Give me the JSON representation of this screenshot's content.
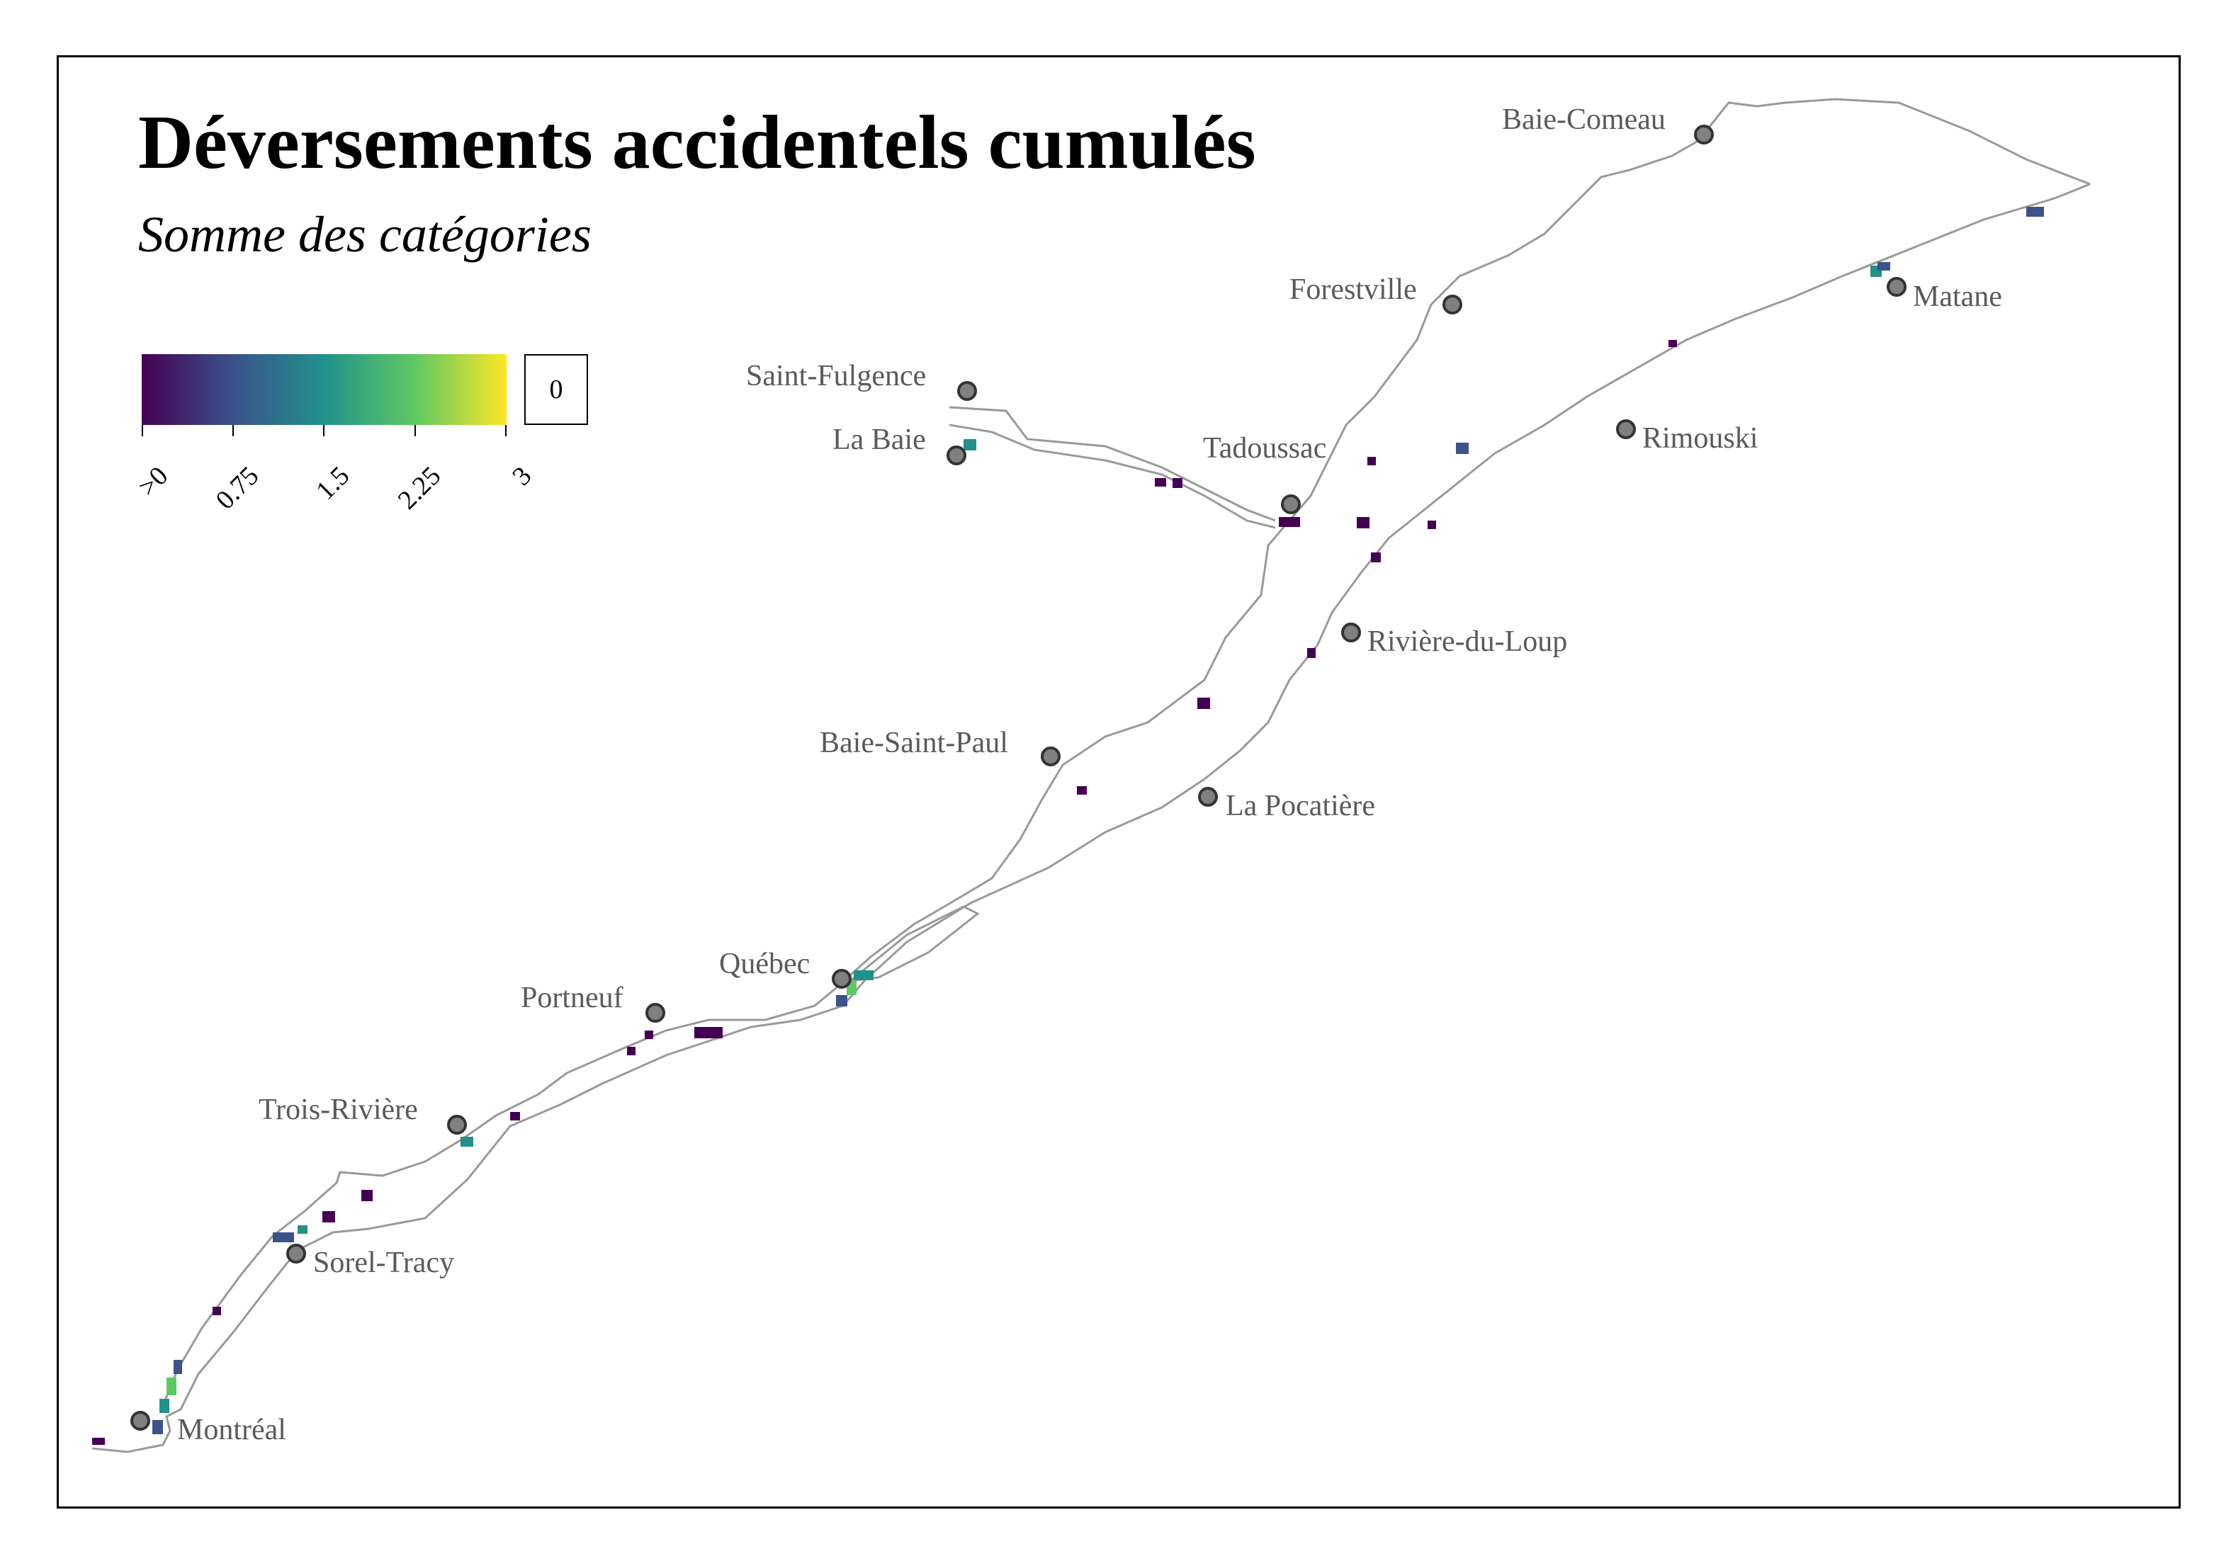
{
  "title": "Déversements accidentels cumulés",
  "subtitle": "Somme des catégories",
  "legend": {
    "ticks": [
      ">0",
      "0.75",
      "1.5",
      "2.25",
      "3"
    ],
    "zero_label": "0",
    "colors": [
      "#440154",
      "#3b528b",
      "#21918c",
      "#5ec962",
      "#fde725"
    ],
    "range": [
      0,
      3
    ]
  },
  "cities": [
    {
      "name": "Baie-Comeau"
    },
    {
      "name": "Forestville"
    },
    {
      "name": "Matane"
    },
    {
      "name": "Saint-Fulgence"
    },
    {
      "name": "La Baie"
    },
    {
      "name": "Tadoussac"
    },
    {
      "name": "Rimouski"
    },
    {
      "name": "Rivière-du-Loup"
    },
    {
      "name": "Baie-Saint-Paul"
    },
    {
      "name": "La Pocatière"
    },
    {
      "name": "Québec"
    },
    {
      "name": "Portneuf"
    },
    {
      "name": "Trois-Rivière"
    },
    {
      "name": "Sorel-Tracy"
    },
    {
      "name": "Montréal"
    }
  ],
  "colors": {
    "shoreline": "#9a9a9a",
    "city_marker_fill": "#808080",
    "city_label": "#5a5a5a"
  }
}
